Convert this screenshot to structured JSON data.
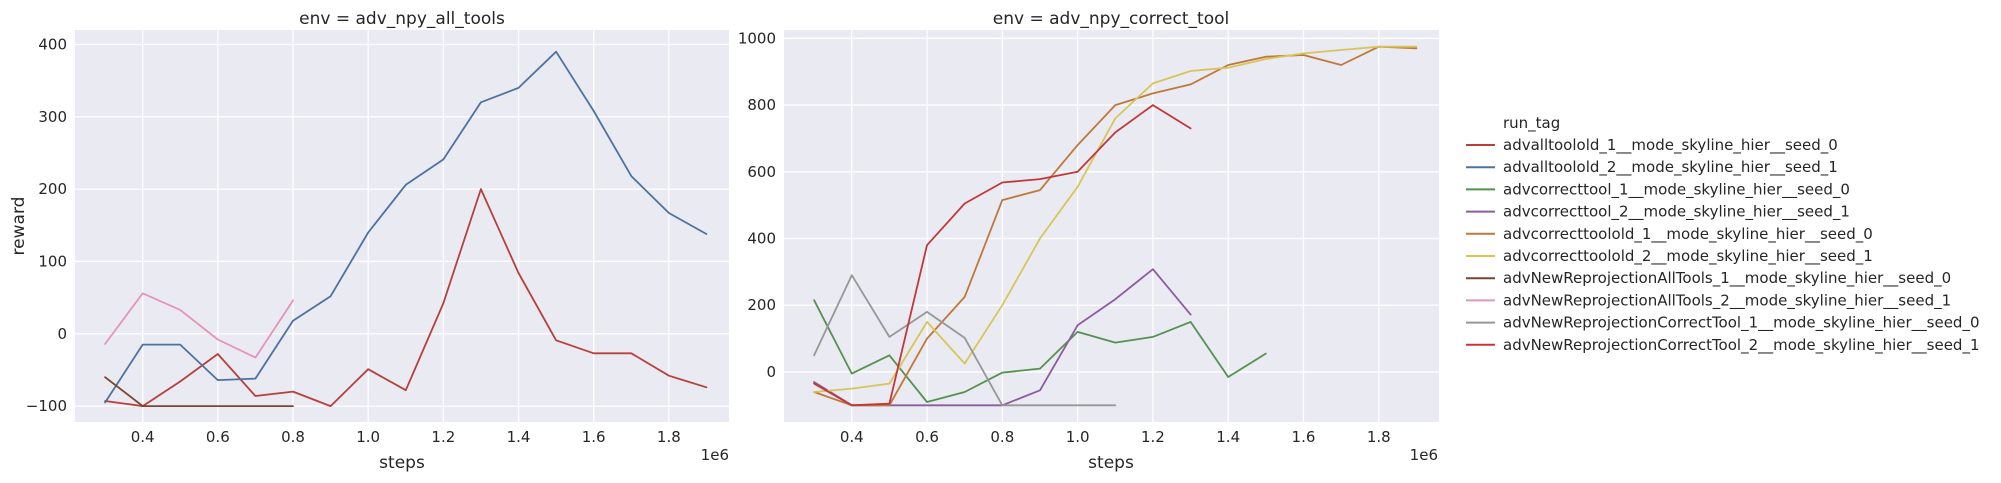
{
  "chart_data": {
    "type": "line",
    "legend": {
      "title": "run_tag",
      "placement": "right",
      "entries": [
        {
          "name": "advalltoolold_1__mode_skyline_hier__seed_0",
          "color": "#b5403c"
        },
        {
          "name": "advalltoolold_2__mode_skyline_hier__seed_1",
          "color": "#4c72a0"
        },
        {
          "name": "advcorrecttool_1__mode_skyline_hier__seed_0",
          "color": "#559150"
        },
        {
          "name": "advcorrecttool_2__mode_skyline_hier__seed_1",
          "color": "#8c5c9e"
        },
        {
          "name": "advcorrecttoolold_1__mode_skyline_hier__seed_0",
          "color": "#c0783a"
        },
        {
          "name": "advcorrecttoolold_2__mode_skyline_hier__seed_1",
          "color": "#d8c55a"
        },
        {
          "name": "advNewReprojectionAllTools_1__mode_skyline_hier__seed_0",
          "color": "#7a4632"
        },
        {
          "name": "advNewReprojectionAllTools_2__mode_skyline_hier__seed_1",
          "color": "#e494bc"
        },
        {
          "name": "advNewReprojectionCorrectTool_1__mode_skyline_hier__seed_0",
          "color": "#979797"
        },
        {
          "name": "advNewReprojectionCorrectTool_2__mode_skyline_hier__seed_1",
          "color": "#c0383a"
        }
      ]
    },
    "panels": [
      {
        "title": "env = adv_npy_all_tools",
        "xlabel": "steps",
        "ylabel": "reward",
        "x_offset_label": "1e6",
        "grid": true,
        "xlim": [
          0.22,
          1.96
        ],
        "ylim": [
          -122,
          420
        ],
        "xticks": [
          0.4,
          0.6,
          0.8,
          1.0,
          1.2,
          1.4,
          1.6,
          1.8
        ],
        "xtick_labels": [
          "0.4",
          "0.6",
          "0.8",
          "1.0",
          "1.2",
          "1.4",
          "1.6",
          "1.8"
        ],
        "yticks": [
          -100,
          0,
          100,
          200,
          300,
          400
        ],
        "ytick_labels": [
          "−100",
          "0",
          "100",
          "200",
          "300",
          "400"
        ],
        "series": [
          {
            "legend_index": 0,
            "x": [
              0.3,
              0.4,
              0.5,
              0.6,
              0.7,
              0.8,
              0.9,
              1.0,
              1.1,
              1.2,
              1.3,
              1.4,
              1.5,
              1.6,
              1.7,
              1.8,
              1.9
            ],
            "y": [
              -93,
              -100,
              -66,
              -28,
              -86,
              -80,
              -100,
              -49,
              -78,
              42,
              200,
              84,
              -9,
              -27,
              -27,
              -58,
              -74
            ]
          },
          {
            "legend_index": 1,
            "x": [
              0.3,
              0.4,
              0.5,
              0.6,
              0.7,
              0.8,
              0.9,
              1.0,
              1.1,
              1.2,
              1.3,
              1.4,
              1.5,
              1.6,
              1.7,
              1.8,
              1.9
            ],
            "y": [
              -95,
              -15,
              -15,
              -64,
              -62,
              18,
              52,
              140,
              206,
              241,
              320,
              340,
              390,
              308,
              218,
              167,
              138
            ]
          },
          {
            "legend_index": 6,
            "x": [
              0.3,
              0.4,
              0.5,
              0.6,
              0.7,
              0.8
            ],
            "y": [
              -60,
              -100,
              -100,
              -100,
              -100,
              -100
            ]
          },
          {
            "legend_index": 7,
            "x": [
              0.3,
              0.4,
              0.5,
              0.6,
              0.7,
              0.8
            ],
            "y": [
              -14,
              56,
              33,
              -8,
              -33,
              46
            ]
          }
        ]
      },
      {
        "title": "env = adv_npy_correct_tool",
        "xlabel": "steps",
        "ylabel": "",
        "x_offset_label": "1e6",
        "grid": true,
        "xlim": [
          0.22,
          1.96
        ],
        "ylim": [
          -150,
          1025
        ],
        "xticks": [
          0.4,
          0.6,
          0.8,
          1.0,
          1.2,
          1.4,
          1.6,
          1.8
        ],
        "xtick_labels": [
          "0.4",
          "0.6",
          "0.8",
          "1.0",
          "1.2",
          "1.4",
          "1.6",
          "1.8"
        ],
        "yticks": [
          0,
          200,
          400,
          600,
          800,
          1000
        ],
        "ytick_labels": [
          "0",
          "200",
          "400",
          "600",
          "800",
          "1000"
        ],
        "series": [
          {
            "legend_index": 2,
            "x": [
              0.3,
              0.4,
              0.5,
              0.6,
              0.7,
              0.8,
              0.9,
              1.0,
              1.1,
              1.2,
              1.3,
              1.4,
              1.5
            ],
            "y": [
              215,
              -5,
              50,
              -90,
              -60,
              -2,
              10,
              120,
              88,
              105,
              150,
              -15,
              55
            ]
          },
          {
            "legend_index": 3,
            "x": [
              0.3,
              0.4,
              0.5,
              0.6,
              0.7,
              0.8,
              0.9,
              1.0,
              1.1,
              1.2,
              1.3
            ],
            "y": [
              -30,
              -100,
              -100,
              -100,
              -100,
              -100,
              -55,
              140,
              218,
              308,
              172
            ]
          },
          {
            "legend_index": 4,
            "x": [
              0.3,
              0.4,
              0.5,
              0.6,
              0.7,
              0.8,
              0.9,
              1.0,
              1.1,
              1.2,
              1.3,
              1.4,
              1.5,
              1.6,
              1.7,
              1.8,
              1.9
            ],
            "y": [
              -60,
              -100,
              -100,
              100,
              225,
              515,
              545,
              680,
              800,
              835,
              862,
              920,
              945,
              950,
              920,
              975,
              970
            ]
          },
          {
            "legend_index": 5,
            "x": [
              0.3,
              0.4,
              0.5,
              0.6,
              0.7,
              0.8,
              0.9,
              1.0,
              1.1,
              1.2,
              1.3,
              1.4,
              1.5,
              1.6,
              1.7,
              1.8,
              1.9
            ],
            "y": [
              -60,
              -50,
              -35,
              150,
              25,
              200,
              400,
              555,
              760,
              865,
              902,
              912,
              938,
              955,
              965,
              975,
              975
            ]
          },
          {
            "legend_index": 8,
            "x": [
              0.3,
              0.4,
              0.5,
              0.6,
              0.7,
              0.8,
              0.9,
              1.0,
              1.1
            ],
            "y": [
              50,
              290,
              105,
              180,
              102,
              -100,
              -100,
              -100,
              -100
            ]
          },
          {
            "legend_index": 9,
            "x": [
              0.3,
              0.4,
              0.5,
              0.6,
              0.7,
              0.8,
              0.9,
              1.0,
              1.1,
              1.2,
              1.3
            ],
            "y": [
              -35,
              -100,
              -95,
              380,
              505,
              568,
              578,
              600,
              718,
              800,
              730
            ]
          }
        ]
      }
    ]
  }
}
